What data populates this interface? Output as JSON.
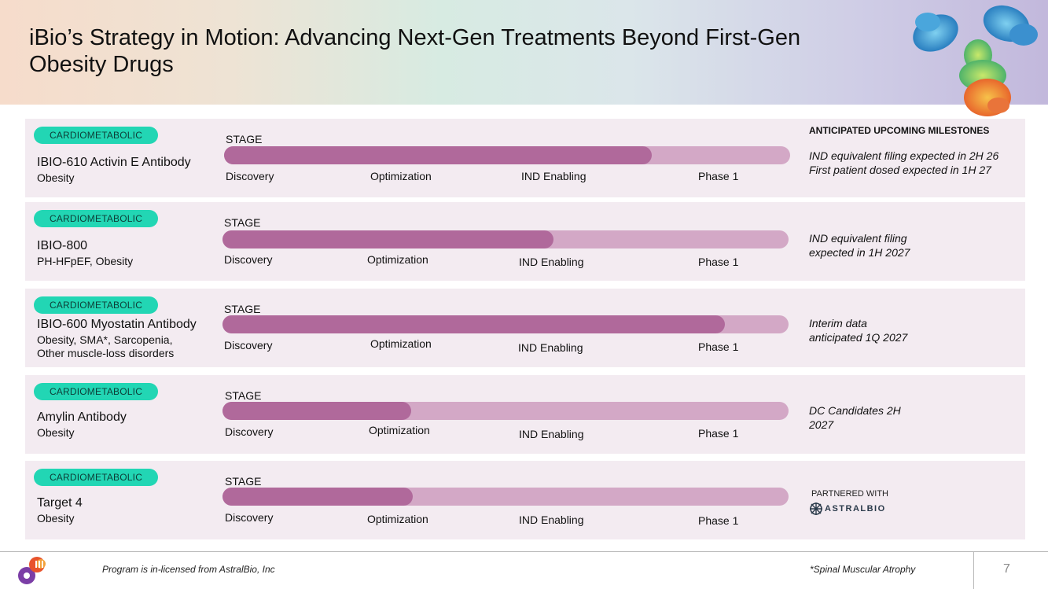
{
  "title": {
    "line1": "iBio’s Strategy in Motion: Advancing Next-Gen Treatments Beyond First-Gen",
    "line2": "Obesity Drugs"
  },
  "milestones_header": "ANTICIPATED UPCOMING MILESTONES",
  "stages": [
    "Discovery",
    "Optimization",
    "IND Enabling",
    "Phase 1"
  ],
  "stage_label": "STAGE",
  "programs": [
    {
      "tag": "CARDIOMETABOLIC",
      "name": "IBIO-610 Activin E Antibody",
      "indication": "Obesity",
      "progress": 0.756,
      "milestone": "IND equivalent filing expected in 2H 26\nFirst patient dosed expected in 1H 27"
    },
    {
      "tag": "CARDIOMETABOLIC",
      "name": "IBIO-800",
      "indication": "PH-HFpEF, Obesity",
      "progress": 0.585,
      "milestone": "IND equivalent filing\nexpected in 1H 2027"
    },
    {
      "tag": "CARDIOMETABOLIC",
      "name": "IBIO-600 Myostatin Antibody",
      "indication": "Obesity, SMA*, Sarcopenia,\nOther muscle-loss disorders",
      "progress": 0.888,
      "milestone": "Interim data\nanticipated 1Q 2027"
    },
    {
      "tag": "CARDIOMETABOLIC",
      "name": "Amylin Antibody",
      "indication": "Obesity",
      "progress": 0.333,
      "milestone": "DC Candidates 2H\n2027"
    },
    {
      "tag": "CARDIOMETABOLIC",
      "name": "Target 4",
      "indication": "Obesity",
      "progress": 0.336,
      "partner_label": "PARTNERED WITH",
      "partner_logo_text": "ASTRALBIO"
    }
  ],
  "footer": {
    "left_note": "Program is  in-licensed from AstralBio, Inc",
    "right_note": "*Spinal Muscular Atrophy",
    "page_number": "7"
  },
  "colors": {
    "pill": "#22d6b4",
    "row_bg": "#f3ebf1",
    "track": "#d3a8c6",
    "fill": "#b0699b"
  }
}
